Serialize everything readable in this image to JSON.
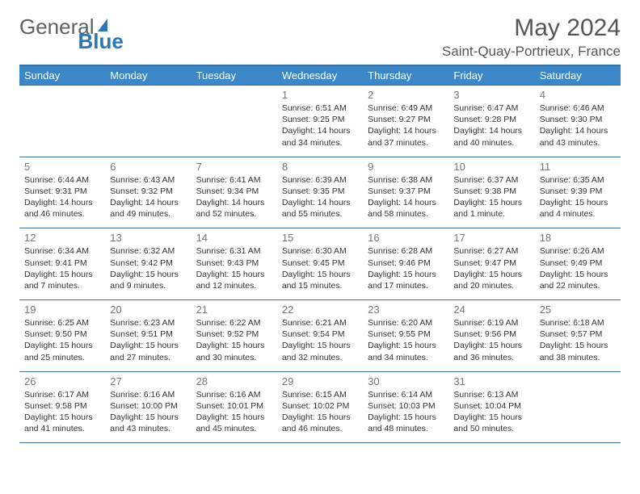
{
  "logo": {
    "text1": "General",
    "text2": "Blue"
  },
  "title": "May 2024",
  "location": "Saint-Quay-Portrieux, France",
  "colors": {
    "header_bg": "#3b87c8",
    "header_border": "#3b6fa0",
    "text": "#333333",
    "day_num": "#777777",
    "logo_gray": "#606060",
    "logo_blue": "#2b77b8"
  },
  "day_headers": [
    "Sunday",
    "Monday",
    "Tuesday",
    "Wednesday",
    "Thursday",
    "Friday",
    "Saturday"
  ],
  "weeks": [
    [
      null,
      null,
      null,
      {
        "n": "1",
        "sunrise": "6:51 AM",
        "sunset": "9:25 PM",
        "daylight": "14 hours and 34 minutes."
      },
      {
        "n": "2",
        "sunrise": "6:49 AM",
        "sunset": "9:27 PM",
        "daylight": "14 hours and 37 minutes."
      },
      {
        "n": "3",
        "sunrise": "6:47 AM",
        "sunset": "9:28 PM",
        "daylight": "14 hours and 40 minutes."
      },
      {
        "n": "4",
        "sunrise": "6:46 AM",
        "sunset": "9:30 PM",
        "daylight": "14 hours and 43 minutes."
      }
    ],
    [
      {
        "n": "5",
        "sunrise": "6:44 AM",
        "sunset": "9:31 PM",
        "daylight": "14 hours and 46 minutes."
      },
      {
        "n": "6",
        "sunrise": "6:43 AM",
        "sunset": "9:32 PM",
        "daylight": "14 hours and 49 minutes."
      },
      {
        "n": "7",
        "sunrise": "6:41 AM",
        "sunset": "9:34 PM",
        "daylight": "14 hours and 52 minutes."
      },
      {
        "n": "8",
        "sunrise": "6:39 AM",
        "sunset": "9:35 PM",
        "daylight": "14 hours and 55 minutes."
      },
      {
        "n": "9",
        "sunrise": "6:38 AM",
        "sunset": "9:37 PM",
        "daylight": "14 hours and 58 minutes."
      },
      {
        "n": "10",
        "sunrise": "6:37 AM",
        "sunset": "9:38 PM",
        "daylight": "15 hours and 1 minute."
      },
      {
        "n": "11",
        "sunrise": "6:35 AM",
        "sunset": "9:39 PM",
        "daylight": "15 hours and 4 minutes."
      }
    ],
    [
      {
        "n": "12",
        "sunrise": "6:34 AM",
        "sunset": "9:41 PM",
        "daylight": "15 hours and 7 minutes."
      },
      {
        "n": "13",
        "sunrise": "6:32 AM",
        "sunset": "9:42 PM",
        "daylight": "15 hours and 9 minutes."
      },
      {
        "n": "14",
        "sunrise": "6:31 AM",
        "sunset": "9:43 PM",
        "daylight": "15 hours and 12 minutes."
      },
      {
        "n": "15",
        "sunrise": "6:30 AM",
        "sunset": "9:45 PM",
        "daylight": "15 hours and 15 minutes."
      },
      {
        "n": "16",
        "sunrise": "6:28 AM",
        "sunset": "9:46 PM",
        "daylight": "15 hours and 17 minutes."
      },
      {
        "n": "17",
        "sunrise": "6:27 AM",
        "sunset": "9:47 PM",
        "daylight": "15 hours and 20 minutes."
      },
      {
        "n": "18",
        "sunrise": "6:26 AM",
        "sunset": "9:49 PM",
        "daylight": "15 hours and 22 minutes."
      }
    ],
    [
      {
        "n": "19",
        "sunrise": "6:25 AM",
        "sunset": "9:50 PM",
        "daylight": "15 hours and 25 minutes."
      },
      {
        "n": "20",
        "sunrise": "6:23 AM",
        "sunset": "9:51 PM",
        "daylight": "15 hours and 27 minutes."
      },
      {
        "n": "21",
        "sunrise": "6:22 AM",
        "sunset": "9:52 PM",
        "daylight": "15 hours and 30 minutes."
      },
      {
        "n": "22",
        "sunrise": "6:21 AM",
        "sunset": "9:54 PM",
        "daylight": "15 hours and 32 minutes."
      },
      {
        "n": "23",
        "sunrise": "6:20 AM",
        "sunset": "9:55 PM",
        "daylight": "15 hours and 34 minutes."
      },
      {
        "n": "24",
        "sunrise": "6:19 AM",
        "sunset": "9:56 PM",
        "daylight": "15 hours and 36 minutes."
      },
      {
        "n": "25",
        "sunrise": "6:18 AM",
        "sunset": "9:57 PM",
        "daylight": "15 hours and 38 minutes."
      }
    ],
    [
      {
        "n": "26",
        "sunrise": "6:17 AM",
        "sunset": "9:58 PM",
        "daylight": "15 hours and 41 minutes."
      },
      {
        "n": "27",
        "sunrise": "6:16 AM",
        "sunset": "10:00 PM",
        "daylight": "15 hours and 43 minutes."
      },
      {
        "n": "28",
        "sunrise": "6:16 AM",
        "sunset": "10:01 PM",
        "daylight": "15 hours and 45 minutes."
      },
      {
        "n": "29",
        "sunrise": "6:15 AM",
        "sunset": "10:02 PM",
        "daylight": "15 hours and 46 minutes."
      },
      {
        "n": "30",
        "sunrise": "6:14 AM",
        "sunset": "10:03 PM",
        "daylight": "15 hours and 48 minutes."
      },
      {
        "n": "31",
        "sunrise": "6:13 AM",
        "sunset": "10:04 PM",
        "daylight": "15 hours and 50 minutes."
      },
      null
    ]
  ],
  "labels": {
    "sunrise": "Sunrise: ",
    "sunset": "Sunset: ",
    "daylight": "Daylight: "
  }
}
